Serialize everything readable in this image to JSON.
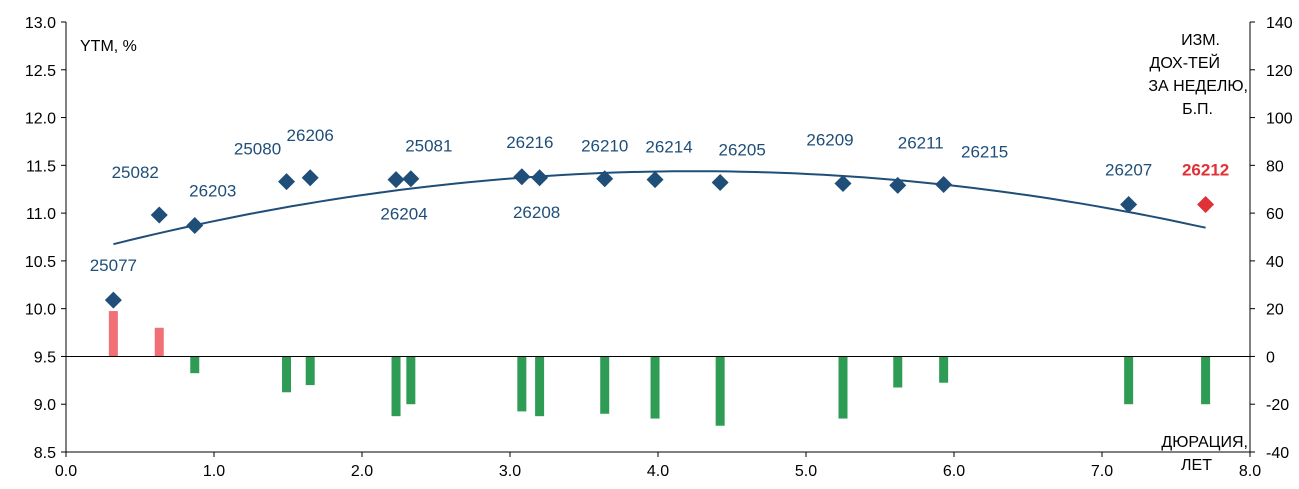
{
  "chart_data": {
    "type": "scatter",
    "y_label": "YTM, %",
    "y2_label": [
      "ИЗМ.",
      "ДОХ-ТЕЙ",
      "ЗА НЕДЕЛЮ,",
      "Б.П."
    ],
    "x_label": [
      "ДЮРАЦИЯ,",
      "ЛЕТ"
    ],
    "xlim": [
      0.0,
      8.0
    ],
    "ylim": [
      8.5,
      13.0
    ],
    "y2lim": [
      -40,
      140
    ],
    "x_ticks": [
      "0.0",
      "1.0",
      "2.0",
      "3.0",
      "4.0",
      "5.0",
      "6.0",
      "7.0",
      "8.0"
    ],
    "y_ticks": [
      "8.5",
      "9.0",
      "9.5",
      "10.0",
      "10.5",
      "11.0",
      "11.5",
      "12.0",
      "12.5",
      "13.0"
    ],
    "y2_ticks": [
      "-40",
      "-20",
      "0",
      "20",
      "40",
      "60",
      "80",
      "100",
      "120",
      "140"
    ],
    "colors": {
      "point": "#1f4e79",
      "highlight_point": "#e03236",
      "curve": "#1f4e79",
      "bar_positive": "#f07075",
      "bar_negative": "#2e9c55"
    },
    "bonds": [
      {
        "name": "25077",
        "duration": 0.32,
        "ytm": 10.09,
        "chg_bp": 19
      },
      {
        "name": "25082",
        "duration": 0.63,
        "ytm": 10.98,
        "chg_bp": 12
      },
      {
        "name": "26203",
        "duration": 0.87,
        "ytm": 10.87,
        "chg_bp": -7
      },
      {
        "name": "25080",
        "duration": 1.49,
        "ytm": 11.33,
        "chg_bp": -15
      },
      {
        "name": "26206",
        "duration": 1.65,
        "ytm": 11.37,
        "chg_bp": -12
      },
      {
        "name": "26204",
        "duration": 2.23,
        "ytm": 11.35,
        "chg_bp": -25
      },
      {
        "name": "25081",
        "duration": 2.33,
        "ytm": 11.36,
        "chg_bp": -20
      },
      {
        "name": "26216",
        "duration": 3.08,
        "ytm": 11.38,
        "chg_bp": -23
      },
      {
        "name": "26208",
        "duration": 3.2,
        "ytm": 11.37,
        "chg_bp": -25
      },
      {
        "name": "26210",
        "duration": 3.64,
        "ytm": 11.36,
        "chg_bp": -24
      },
      {
        "name": "26214",
        "duration": 3.98,
        "ytm": 11.35,
        "chg_bp": -26
      },
      {
        "name": "26205",
        "duration": 4.42,
        "ytm": 11.32,
        "chg_bp": -29
      },
      {
        "name": "26209",
        "duration": 5.25,
        "ytm": 11.31,
        "chg_bp": -26
      },
      {
        "name": "26211",
        "duration": 5.62,
        "ytm": 11.29,
        "chg_bp": -13
      },
      {
        "name": "26215",
        "duration": 5.93,
        "ytm": 11.3,
        "chg_bp": -11
      },
      {
        "name": "26207",
        "duration": 7.18,
        "ytm": 11.09,
        "chg_bp": -20
      },
      {
        "name": "26212",
        "duration": 7.7,
        "ytm": 11.09,
        "chg_bp": -20,
        "highlight": true
      }
    ],
    "trend": {
      "type": "quadratic",
      "x_range": [
        0.32,
        7.7
      ],
      "coefficients": [
        10.5445,
        0.4212,
        -0.0496
      ]
    }
  }
}
